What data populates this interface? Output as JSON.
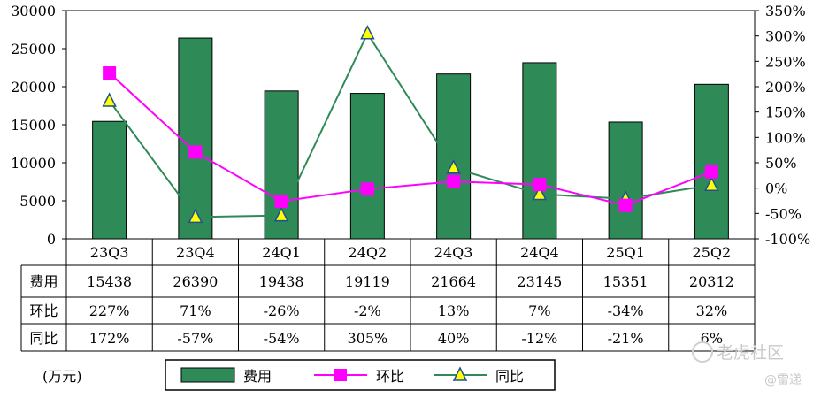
{
  "chart_data": {
    "type": "bar",
    "categories": [
      "23Q3",
      "23Q4",
      "24Q1",
      "24Q2",
      "24Q3",
      "24Q4",
      "25Q1",
      "25Q2"
    ],
    "series": [
      {
        "name": "费用",
        "type": "bar",
        "axis": "left",
        "values": [
          15438,
          26390,
          19438,
          19119,
          21664,
          23145,
          15351,
          20312
        ],
        "color": "#2e8b57"
      },
      {
        "name": "环比",
        "type": "line",
        "axis": "right",
        "values": [
          227,
          71,
          -26,
          -2,
          13,
          7,
          -34,
          32
        ],
        "color": "#ff00ff",
        "marker": "square"
      },
      {
        "name": "同比",
        "type": "line",
        "axis": "right",
        "values": [
          172,
          -57,
          -54,
          305,
          40,
          -12,
          -21,
          6
        ],
        "color": "#2e8b57",
        "marker": "triangle"
      }
    ],
    "y_left": {
      "ylim": [
        0,
        30000
      ],
      "ticks": [
        "0",
        "5000",
        "10000",
        "15000",
        "20000",
        "25000",
        "30000"
      ]
    },
    "y_right": {
      "ylim": [
        -100,
        350
      ],
      "ticks": [
        "-100%",
        "-50%",
        "0%",
        "50%",
        "100%",
        "150%",
        "200%",
        "250%",
        "300%",
        "350%"
      ]
    },
    "table": {
      "rows": [
        {
          "label": "费用",
          "cells": [
            "15438",
            "26390",
            "19438",
            "19119",
            "21664",
            "23145",
            "15351",
            "20312"
          ]
        },
        {
          "label": "环比",
          "cells": [
            "227%",
            "71%",
            "-26%",
            "-2%",
            "13%",
            "7%",
            "-34%",
            "32%"
          ]
        },
        {
          "label": "同比",
          "cells": [
            "172%",
            "-57%",
            "-54%",
            "305%",
            "40%",
            "-12%",
            "-21%",
            "6%"
          ]
        }
      ]
    },
    "unit_label": "(万元)",
    "legend": {
      "position": "bottom",
      "items": [
        "费用",
        "环比",
        "同比"
      ]
    }
  },
  "watermark": {
    "main": "老虎社区",
    "sub": "@雷递"
  }
}
